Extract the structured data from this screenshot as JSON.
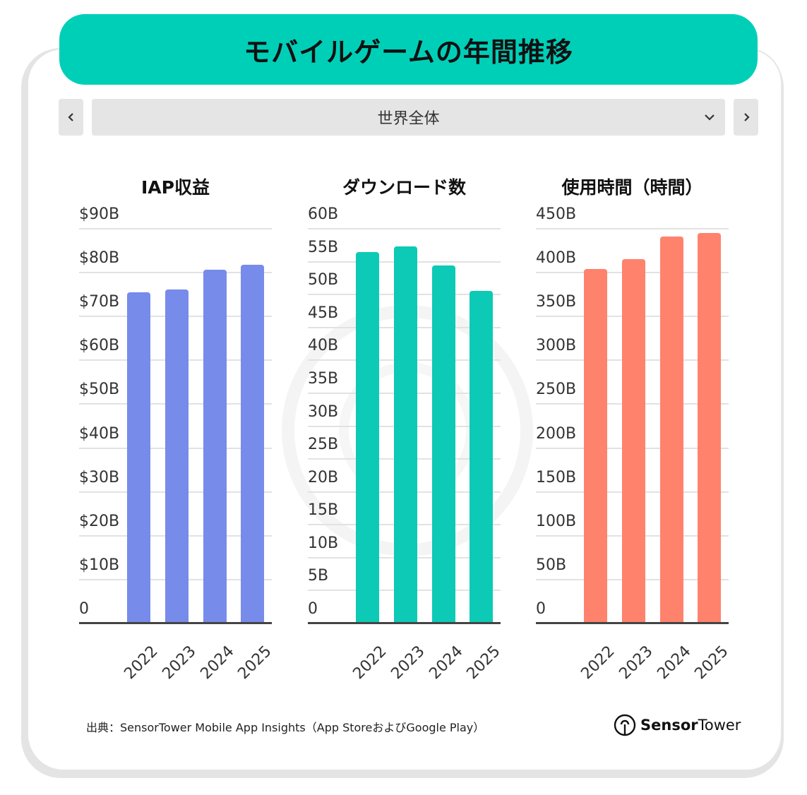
{
  "header": {
    "title": "モバイルゲームの年間推移"
  },
  "nav": {
    "prev_icon": "chevron-left-icon",
    "next_icon": "chevron-right-icon",
    "region_select": {
      "selected": "世界全体",
      "icon": "chevron-down-icon"
    }
  },
  "charts": [
    {
      "title": "IAP収益",
      "color": "#778bea",
      "yticks": [
        "$90B",
        "$80B",
        "$70B",
        "$60B",
        "$50B",
        "$40B",
        "$30B",
        "$20B",
        "$10B",
        "0"
      ],
      "ymax": 90,
      "categories": [
        "2022",
        "2023",
        "2024",
        "2025"
      ],
      "values": [
        75.3,
        76.0,
        80.5,
        81.6
      ]
    },
    {
      "title": "ダウンロード数",
      "color": "#0ccab5",
      "yticks": [
        "60B",
        "55B",
        "50B",
        "45B",
        "40B",
        "35B",
        "30B",
        "25B",
        "20B",
        "15B",
        "10B",
        "5B",
        "0"
      ],
      "ymax": 60,
      "categories": [
        "2022",
        "2023",
        "2024",
        "2025"
      ],
      "values": [
        56.3,
        57.2,
        54.3,
        50.5
      ]
    },
    {
      "title": "使用時間（時間）",
      "color": "#ff826d",
      "yticks": [
        "450B",
        "400B",
        "350B",
        "300B",
        "250B",
        "200B",
        "150B",
        "100B",
        "50B",
        "0"
      ],
      "ymax": 450,
      "categories": [
        "2022",
        "2023",
        "2024",
        "2025"
      ],
      "values": [
        403,
        414.5,
        440,
        444
      ]
    }
  ],
  "chart_data": [
    {
      "type": "bar",
      "title": "IAP収益",
      "categories": [
        "2022",
        "2023",
        "2024",
        "2025"
      ],
      "values": [
        75.3,
        76.0,
        80.5,
        81.6
      ],
      "xlabel": "",
      "ylabel": "",
      "unit": "$B",
      "ylim": [
        0,
        90
      ],
      "yticks": [
        "0",
        "$10B",
        "$20B",
        "$30B",
        "$40B",
        "$50B",
        "$60B",
        "$70B",
        "$80B",
        "$90B"
      ],
      "grid": true,
      "color": "#778bea"
    },
    {
      "type": "bar",
      "title": "ダウンロード数",
      "categories": [
        "2022",
        "2023",
        "2024",
        "2025"
      ],
      "values": [
        56.3,
        57.2,
        54.3,
        50.5
      ],
      "xlabel": "",
      "ylabel": "",
      "unit": "B",
      "ylim": [
        0,
        60
      ],
      "yticks": [
        "0",
        "5B",
        "10B",
        "15B",
        "20B",
        "25B",
        "30B",
        "35B",
        "40B",
        "45B",
        "50B",
        "55B",
        "60B"
      ],
      "grid": true,
      "color": "#0ccab5"
    },
    {
      "type": "bar",
      "title": "使用時間（時間）",
      "categories": [
        "2022",
        "2023",
        "2024",
        "2025"
      ],
      "values": [
        403,
        414.5,
        440,
        444
      ],
      "xlabel": "",
      "ylabel": "",
      "unit": "B hours",
      "ylim": [
        0,
        450
      ],
      "yticks": [
        "0",
        "50B",
        "100B",
        "150B",
        "200B",
        "250B",
        "300B",
        "350B",
        "400B",
        "450B"
      ],
      "grid": true,
      "color": "#ff826d"
    }
  ],
  "footer": {
    "source": "出典：SensorTower Mobile App Insights（App StoreおよびGoogle Play）",
    "logo_bold": "Sensor",
    "logo_regular": "Tower",
    "logo_icon": "sensor-tower-logo-icon"
  }
}
